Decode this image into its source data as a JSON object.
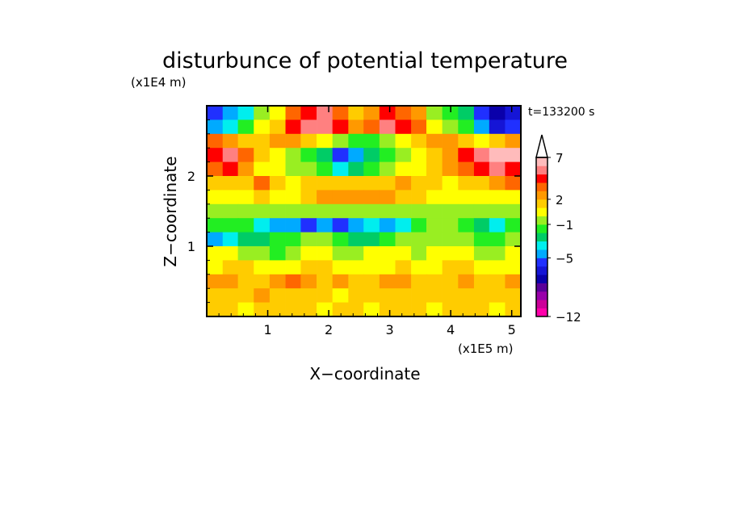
{
  "chart_data": {
    "type": "heatmap",
    "title": "disturbunce of potential temperature",
    "time_label": "t=133200 s",
    "xlabel": "X−coordinate",
    "ylabel": "Z−coordinate",
    "x_unit": "(x1E5 m)",
    "y_unit": "(x1E4 m)",
    "xlim": [
      0,
      5.15
    ],
    "ylim": [
      0,
      3.0
    ],
    "x_ticks": [
      1,
      2,
      3,
      4,
      5
    ],
    "x_tick_labels": [
      "1",
      "2",
      "3",
      "4",
      "5"
    ],
    "y_ticks": [
      1,
      2
    ],
    "y_tick_labels": [
      "1",
      "2"
    ],
    "colorbar": {
      "tick_values": [
        -12,
        -5,
        -1,
        2,
        7
      ],
      "tick_labels": [
        "−12",
        "−5",
        "−1",
        "2",
        "7"
      ],
      "extend": "max",
      "colors": [
        "#ff00aa",
        "#cc0099",
        "#9900aa",
        "#5a0099",
        "#0a00aa",
        "#1515d6",
        "#2030ff",
        "#00aaff",
        "#00eeee",
        "#00cc66",
        "#22ee22",
        "#99ee22",
        "#ffff00",
        "#ffcc00",
        "#ff9900",
        "#ff6600",
        "#ff0000",
        "#ff8080",
        "#ffbbbb"
      ],
      "levels": [
        -12,
        -11,
        -10,
        -9,
        -8,
        -7,
        -6,
        -5,
        -4,
        -3,
        -2,
        -1,
        0,
        1,
        2,
        3,
        4,
        5,
        6,
        7
      ]
    },
    "grid_x": [
      0.13,
      0.39,
      0.64,
      0.9,
      1.16,
      1.42,
      1.67,
      1.93,
      2.19,
      2.45,
      2.7,
      2.96,
      3.22,
      3.48,
      3.73,
      3.99,
      4.25,
      4.51,
      4.76,
      5.02
    ],
    "grid_z": [
      2.9,
      2.7,
      2.5,
      2.3,
      2.1,
      1.9,
      1.7,
      1.5,
      1.3,
      1.1,
      0.9,
      0.7,
      0.5,
      0.3,
      0.1
    ],
    "values": [
      [
        -6,
        -5,
        -4,
        -1,
        0,
        3,
        4,
        5,
        3,
        1,
        2,
        4,
        3,
        2,
        -1,
        -2,
        -3,
        -6,
        -8,
        -7
      ],
      [
        -5,
        -4,
        -2,
        0,
        1,
        4,
        5,
        5,
        4,
        2,
        3,
        5,
        4,
        3,
        0,
        -1,
        -2,
        -5,
        -7,
        -6
      ],
      [
        3,
        2,
        1,
        1,
        2,
        2,
        1,
        0,
        -1,
        -2,
        -2,
        -1,
        0,
        1,
        2,
        2,
        1,
        0,
        1,
        2
      ],
      [
        4,
        5,
        3,
        1,
        0,
        -1,
        -2,
        -3,
        -6,
        -5,
        -3,
        -2,
        -1,
        0,
        1,
        2,
        4,
        5,
        6,
        7
      ],
      [
        3,
        4,
        2,
        0,
        0,
        -1,
        -1,
        -2,
        -4,
        -3,
        -2,
        -1,
        0,
        0,
        1,
        2,
        3,
        4,
        5,
        4
      ],
      [
        1,
        1,
        1,
        3,
        1,
        0,
        1,
        1,
        1,
        1,
        1,
        1,
        2,
        1,
        1,
        0,
        1,
        1,
        2,
        3
      ],
      [
        0,
        0,
        0,
        1,
        0,
        0,
        1,
        2,
        2,
        2,
        2,
        2,
        1,
        1,
        0,
        0,
        0,
        0,
        0,
        0
      ],
      [
        -1,
        -1,
        -1,
        -1,
        -1,
        -1,
        -1,
        -1,
        -1,
        -1,
        -1,
        -1,
        -1,
        -1,
        -1,
        -1,
        -1,
        -1,
        -1,
        -1
      ],
      [
        -2,
        -2,
        -2,
        -4,
        -5,
        -5,
        -6,
        -5,
        -6,
        -5,
        -4,
        -5,
        -4,
        -2,
        -1,
        -1,
        -2,
        -3,
        -4,
        -2
      ],
      [
        -5,
        -4,
        -3,
        -3,
        -2,
        -2,
        -1,
        -1,
        -2,
        -3,
        -3,
        -2,
        -1,
        -1,
        -1,
        -1,
        -1,
        -2,
        -2,
        -1
      ],
      [
        0,
        0,
        -1,
        -1,
        -2,
        -1,
        0,
        0,
        -1,
        -1,
        0,
        0,
        0,
        -1,
        0,
        0,
        0,
        -1,
        -1,
        0
      ],
      [
        0,
        1,
        1,
        0,
        0,
        0,
        1,
        1,
        0,
        0,
        0,
        0,
        1,
        0,
        0,
        1,
        1,
        0,
        0,
        0
      ],
      [
        2,
        2,
        1,
        1,
        2,
        3,
        2,
        1,
        2,
        1,
        1,
        2,
        2,
        1,
        1,
        1,
        2,
        1,
        1,
        2
      ],
      [
        1,
        1,
        1,
        2,
        1,
        1,
        1,
        1,
        0,
        1,
        1,
        1,
        1,
        1,
        1,
        1,
        1,
        1,
        1,
        1
      ],
      [
        1,
        1,
        0,
        1,
        1,
        1,
        1,
        0,
        1,
        1,
        0,
        1,
        1,
        1,
        0,
        1,
        1,
        1,
        0,
        1
      ]
    ]
  }
}
